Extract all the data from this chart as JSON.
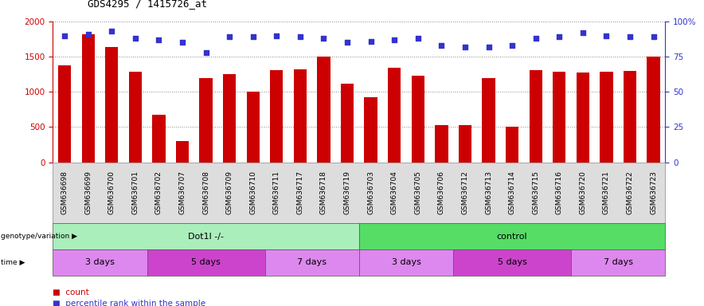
{
  "title": "GDS4295 / 1415726_at",
  "samples": [
    "GSM636698",
    "GSM636699",
    "GSM636700",
    "GSM636701",
    "GSM636702",
    "GSM636707",
    "GSM636708",
    "GSM636709",
    "GSM636710",
    "GSM636711",
    "GSM636717",
    "GSM636718",
    "GSM636719",
    "GSM636703",
    "GSM636704",
    "GSM636705",
    "GSM636706",
    "GSM636712",
    "GSM636713",
    "GSM636714",
    "GSM636715",
    "GSM636716",
    "GSM636720",
    "GSM636721",
    "GSM636722",
    "GSM636723"
  ],
  "counts": [
    1380,
    1820,
    1640,
    1280,
    670,
    300,
    1200,
    1250,
    1000,
    1310,
    1320,
    1500,
    1110,
    920,
    1340,
    1230,
    530,
    530,
    1190,
    500,
    1310,
    1280,
    1270,
    1280,
    1300,
    1500
  ],
  "percentiles": [
    90,
    91,
    93,
    88,
    87,
    85,
    78,
    89,
    89,
    90,
    89,
    88,
    85,
    86,
    87,
    88,
    83,
    82,
    82,
    83,
    88,
    89,
    92,
    90,
    89,
    89
  ],
  "bar_color": "#cc0000",
  "dot_color": "#3333cc",
  "ylim_left": [
    0,
    2000
  ],
  "ylim_right": [
    0,
    100
  ],
  "yticks_left": [
    0,
    500,
    1000,
    1500,
    2000
  ],
  "yticks_right": [
    0,
    25,
    50,
    75,
    100
  ],
  "grid_color": "#888888",
  "bg_color": "#ffffff",
  "genotype_groups": [
    {
      "label": "Dot1l -/-",
      "start": 0,
      "end": 13,
      "color": "#aaeebb"
    },
    {
      "label": "control",
      "start": 13,
      "end": 26,
      "color": "#55dd66"
    }
  ],
  "time_groups": [
    {
      "label": "3 days",
      "start": 0,
      "end": 4,
      "color": "#dd88ee"
    },
    {
      "label": "5 days",
      "start": 4,
      "end": 9,
      "color": "#cc44cc"
    },
    {
      "label": "7 days",
      "start": 9,
      "end": 13,
      "color": "#dd88ee"
    },
    {
      "label": "3 days",
      "start": 13,
      "end": 17,
      "color": "#dd88ee"
    },
    {
      "label": "5 days",
      "start": 17,
      "end": 22,
      "color": "#cc44cc"
    },
    {
      "label": "7 days",
      "start": 22,
      "end": 26,
      "color": "#dd88ee"
    }
  ],
  "xlabel_fontsize": 6.5,
  "title_fontsize": 9,
  "tick_fontsize": 7.5,
  "row_fontsize": 8,
  "legend_items": [
    {
      "label": "count",
      "color": "#cc0000"
    },
    {
      "label": "percentile rank within the sample",
      "color": "#3333cc"
    }
  ],
  "xticklabel_area_color": "#dddddd",
  "xticklabel_border_color": "#888888"
}
